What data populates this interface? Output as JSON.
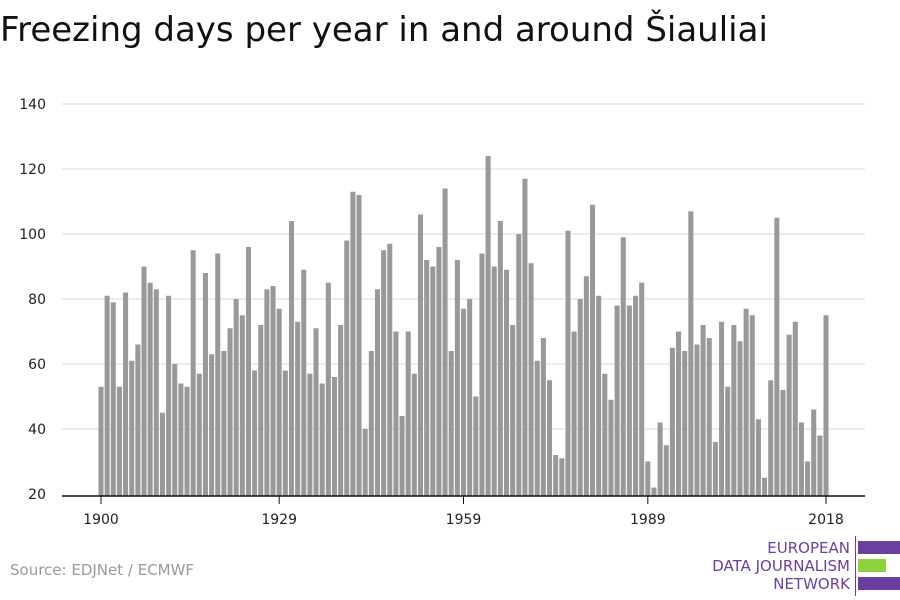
{
  "title": "Freezing days per year in and around Šiauliai",
  "source": "Source: EDJNet / ECMWF",
  "logo": {
    "lines": [
      "EUROPEAN",
      "DATA JOURNALISM",
      "NETWORK"
    ],
    "colors": {
      "purple": "#6b3fa0",
      "green": "#8fd13f"
    }
  },
  "chart_data": {
    "type": "bar",
    "title": "Freezing days per year in and around Šiauliai",
    "xlabel": "",
    "ylabel": "",
    "x_start": 1900,
    "x_end": 2018,
    "x_ticks": [
      "1900",
      "1929",
      "1959",
      "1989",
      "2018"
    ],
    "y_ticks": [
      20,
      40,
      60,
      80,
      100,
      120,
      140
    ],
    "ylim": [
      20,
      140
    ],
    "grid": true,
    "bar_color": "#999999",
    "x": [
      1900,
      1901,
      1902,
      1903,
      1904,
      1905,
      1906,
      1907,
      1908,
      1909,
      1910,
      1911,
      1912,
      1913,
      1914,
      1915,
      1916,
      1917,
      1918,
      1919,
      1920,
      1921,
      1922,
      1923,
      1924,
      1925,
      1926,
      1927,
      1928,
      1929,
      1930,
      1931,
      1932,
      1933,
      1934,
      1935,
      1936,
      1937,
      1938,
      1939,
      1940,
      1941,
      1942,
      1943,
      1944,
      1945,
      1946,
      1947,
      1948,
      1949,
      1950,
      1951,
      1952,
      1953,
      1954,
      1955,
      1956,
      1957,
      1958,
      1959,
      1960,
      1961,
      1962,
      1963,
      1964,
      1965,
      1966,
      1967,
      1968,
      1969,
      1970,
      1971,
      1972,
      1973,
      1974,
      1975,
      1976,
      1977,
      1978,
      1979,
      1980,
      1981,
      1982,
      1983,
      1984,
      1985,
      1986,
      1987,
      1988,
      1989,
      1990,
      1991,
      1992,
      1993,
      1994,
      1995,
      1996,
      1997,
      1998,
      1999,
      2000,
      2001,
      2002,
      2003,
      2004,
      2005,
      2006,
      2007,
      2008,
      2009,
      2010,
      2011,
      2012,
      2013,
      2014,
      2015,
      2016,
      2017,
      2018
    ],
    "values": [
      53,
      81,
      79,
      53,
      82,
      61,
      66,
      90,
      85,
      83,
      45,
      81,
      60,
      54,
      53,
      95,
      57,
      88,
      63,
      94,
      64,
      71,
      80,
      75,
      96,
      58,
      72,
      83,
      84,
      77,
      58,
      104,
      73,
      89,
      57,
      71,
      54,
      85,
      56,
      72,
      98,
      113,
      112,
      40,
      64,
      83,
      95,
      97,
      70,
      44,
      70,
      57,
      106,
      92,
      90,
      96,
      114,
      64,
      92,
      77,
      80,
      50,
      94,
      124,
      90,
      104,
      89,
      72,
      100,
      117,
      91,
      61,
      68,
      55,
      32,
      31,
      101,
      70,
      80,
      87,
      109,
      81,
      57,
      49,
      78,
      99,
      78,
      81,
      85,
      30,
      22,
      42,
      35,
      65,
      70,
      64,
      107,
      66,
      72,
      68,
      36,
      73,
      53,
      72,
      67,
      77,
      75,
      43,
      25,
      55,
      105,
      52,
      69,
      73,
      42,
      30,
      46,
      38,
      75
    ]
  }
}
